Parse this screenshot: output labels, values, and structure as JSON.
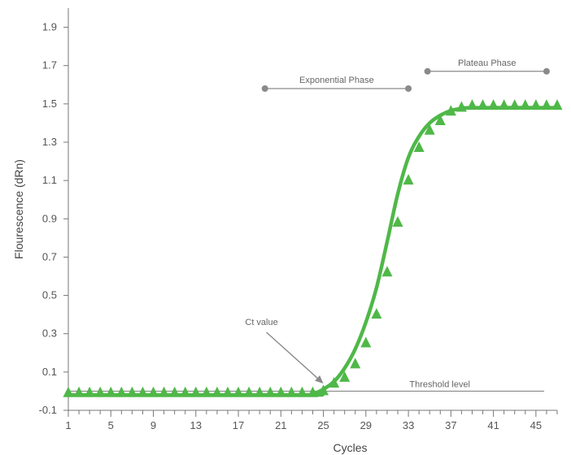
{
  "chart_data": {
    "type": "line",
    "title": "",
    "xlabel": "Cycles",
    "ylabel": "Flourescence (dRn)",
    "xlim": [
      1,
      47
    ],
    "ylim": [
      -0.1,
      2.0
    ],
    "xticks": [
      1,
      5,
      9,
      13,
      17,
      21,
      25,
      29,
      33,
      37,
      41,
      45
    ],
    "yticks": [
      -0.1,
      0.1,
      0.3,
      0.5,
      0.7,
      0.9,
      1.1,
      1.3,
      1.5,
      1.7,
      1.9
    ],
    "grid": false,
    "colors": {
      "series": "#4fb848",
      "axis": "#777777",
      "annotation": "#888888",
      "threshold": "#888888"
    },
    "series": [
      {
        "marker": "triangle",
        "points": [
          [
            1,
            -0.01
          ],
          [
            2,
            -0.01
          ],
          [
            3,
            -0.01
          ],
          [
            4,
            -0.01
          ],
          [
            5,
            -0.01
          ],
          [
            6,
            -0.01
          ],
          [
            7,
            -0.01
          ],
          [
            8,
            -0.01
          ],
          [
            9,
            -0.01
          ],
          [
            10,
            -0.01
          ],
          [
            11,
            -0.01
          ],
          [
            12,
            -0.01
          ],
          [
            13,
            -0.01
          ],
          [
            14,
            -0.01
          ],
          [
            15,
            -0.01
          ],
          [
            16,
            -0.01
          ],
          [
            17,
            -0.01
          ],
          [
            18,
            -0.01
          ],
          [
            19,
            -0.01
          ],
          [
            20,
            -0.01
          ],
          [
            21,
            -0.01
          ],
          [
            22,
            -0.01
          ],
          [
            23,
            -0.01
          ],
          [
            24,
            -0.01
          ],
          [
            25,
            0.0
          ],
          [
            26,
            0.04
          ],
          [
            27,
            0.07
          ],
          [
            28,
            0.14
          ],
          [
            29,
            0.25
          ],
          [
            30,
            0.4
          ],
          [
            31,
            0.62
          ],
          [
            32,
            0.88
          ],
          [
            33,
            1.1
          ],
          [
            34,
            1.27
          ],
          [
            35,
            1.36
          ],
          [
            36,
            1.41
          ],
          [
            37,
            1.46
          ],
          [
            38,
            1.48
          ],
          [
            39,
            1.49
          ],
          [
            40,
            1.49
          ],
          [
            41,
            1.49
          ],
          [
            42,
            1.49
          ],
          [
            43,
            1.49
          ],
          [
            44,
            1.49
          ],
          [
            45,
            1.49
          ],
          [
            46,
            1.49
          ],
          [
            47,
            1.49
          ]
        ],
        "curve": [
          [
            1,
            -0.02
          ],
          [
            23,
            -0.02
          ],
          [
            24,
            -0.015
          ],
          [
            25,
            0.01
          ],
          [
            26,
            0.05
          ],
          [
            27,
            0.12
          ],
          [
            28,
            0.22
          ],
          [
            29,
            0.36
          ],
          [
            30,
            0.54
          ],
          [
            31,
            0.78
          ],
          [
            32,
            1.03
          ],
          [
            33,
            1.22
          ],
          [
            34,
            1.33
          ],
          [
            35,
            1.4
          ],
          [
            36,
            1.44
          ],
          [
            37,
            1.465
          ],
          [
            38,
            1.475
          ],
          [
            39,
            1.48
          ],
          [
            47,
            1.48
          ]
        ]
      }
    ],
    "threshold": {
      "label": "Threshold level",
      "y": 0.0
    },
    "annotations": [
      {
        "id": "exponential",
        "label": "Exponential Phase",
        "x_start": 19.5,
        "x_end": 33,
        "y": 1.58
      },
      {
        "id": "plateau",
        "label": "Plateau Phase",
        "x_start": 34.8,
        "x_end": 46,
        "y": 1.67
      },
      {
        "id": "ct",
        "label": "Ct value",
        "points_to": [
          25,
          0.04
        ]
      }
    ]
  }
}
